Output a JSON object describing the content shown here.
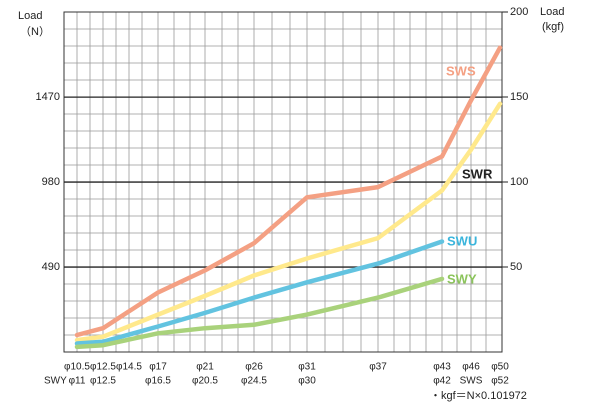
{
  "chart_data": {
    "type": "line",
    "y_label": "Load",
    "y_unit": "（N）",
    "y2_label": "Load",
    "y2_unit": "(kgf)",
    "categories": [
      "φ10.5",
      "φ12.5",
      "φ14.5",
      "φ17",
      "φ21",
      "φ26",
      "φ31",
      "φ37",
      "φ43",
      "φ46",
      "φ50"
    ],
    "categories2": [
      "φ11",
      "φ12.5",
      null,
      "φ16.5",
      "φ20.5",
      "φ24.5",
      "φ30",
      null,
      "φ42",
      "SWS",
      "φ52"
    ],
    "categories2_label": "SWY",
    "ylim": [
      0,
      1961
    ],
    "yticks": [
      490,
      980,
      1470
    ],
    "y2lim": [
      0,
      200
    ],
    "y2ticks": [
      50,
      100,
      150,
      200
    ],
    "series": [
      {
        "name": "SWS",
        "color": "#f4a083",
        "axis": "y2",
        "values": [
          10,
          14,
          null,
          35,
          48,
          64,
          91,
          97,
          115,
          148,
          179
        ]
      },
      {
        "name": "SWR",
        "color": "#ffe98c",
        "axis": "y2",
        "values": [
          7,
          9,
          null,
          22,
          33,
          45,
          55,
          67,
          95,
          119,
          146
        ]
      },
      {
        "name": "SWU",
        "color": "#62c3e0",
        "axis": "y2",
        "values": [
          5,
          6,
          null,
          15,
          23,
          32,
          41,
          52,
          65,
          null,
          null
        ]
      },
      {
        "name": "SWY",
        "color": "#a9d27b",
        "axis": "y2",
        "values": [
          3,
          4,
          null,
          11,
          14,
          16,
          22,
          32,
          43,
          null,
          null
        ]
      }
    ],
    "footnote": "・kgf＝N×0.101972",
    "grid": true
  }
}
